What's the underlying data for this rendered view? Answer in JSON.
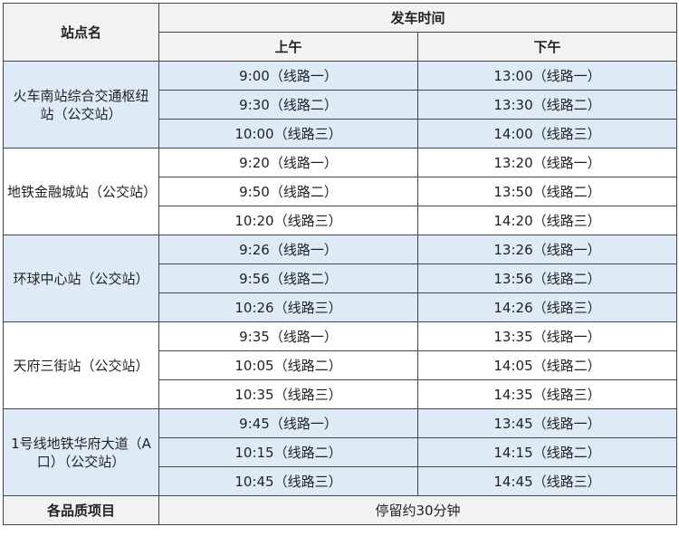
{
  "header": {
    "station_col": "站点名",
    "departure_col": "发车时间",
    "morning": "上午",
    "afternoon": "下午"
  },
  "colors": {
    "header_bg": "#f2f2f2",
    "alt_row_bg": "#deebf7",
    "border": "#444444"
  },
  "stations": [
    {
      "name": "火车南站综合交通枢纽站（公交站）",
      "times": [
        [
          "9:00（线路一）",
          "13:00（线路一）"
        ],
        [
          "9:30（线路二）",
          "13:30（线路二）"
        ],
        [
          "10:00（线路三）",
          "14:00（线路三）"
        ]
      ]
    },
    {
      "name": "地铁金融城站（公交站）",
      "times": [
        [
          "9:20（线路一）",
          "13:20（线路一）"
        ],
        [
          "9:50（线路二）",
          "13:50（线路二）"
        ],
        [
          "10:20（线路三）",
          "14:20（线路三）"
        ]
      ]
    },
    {
      "name": "环球中心站（公交站）",
      "times": [
        [
          "9:26（线路一）",
          "13:26（线路一）"
        ],
        [
          "9:56（线路二）",
          "13:56（线路二）"
        ],
        [
          "10:26（线路三）",
          "14:26（线路三）"
        ]
      ]
    },
    {
      "name": "天府三街站（公交站）",
      "times": [
        [
          "9:35（线路一）",
          "13:35（线路一）"
        ],
        [
          "10:05（线路二）",
          "14:05（线路二）"
        ],
        [
          "10:35（线路三）",
          "14:35（线路三）"
        ]
      ]
    },
    {
      "name": "1号线地铁华府大道（A口）（公交站）",
      "times": [
        [
          "9:45（线路一）",
          "13:45（线路一）"
        ],
        [
          "10:15（线路二）",
          "14:15（线路二）"
        ],
        [
          "10:45（线路三）",
          "14:45（线路三）"
        ]
      ]
    }
  ],
  "footer": {
    "label": "各品质项目",
    "value": "停留约30分钟"
  }
}
